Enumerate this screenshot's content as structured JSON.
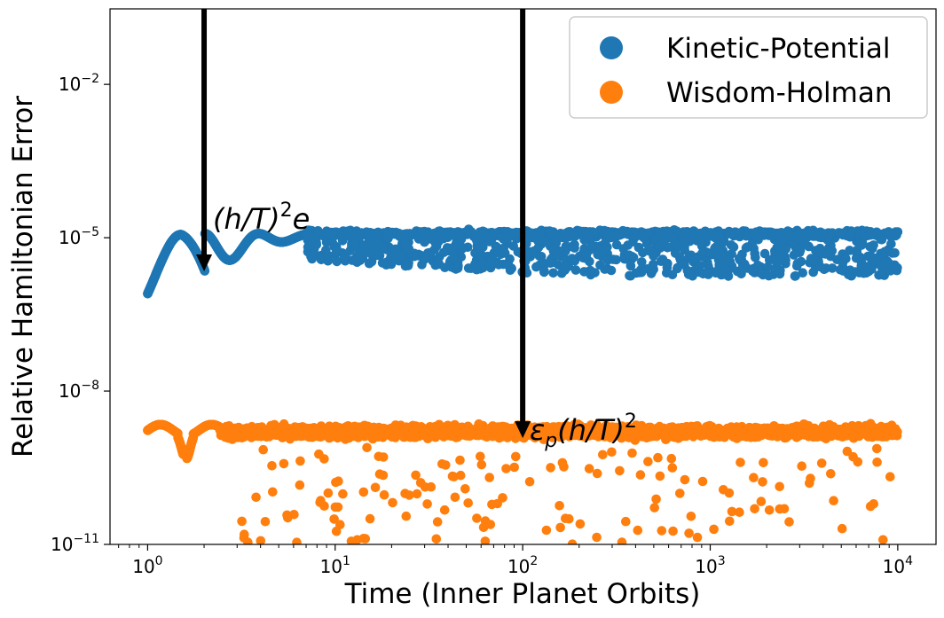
{
  "chart_data": {
    "type": "scatter",
    "title": "",
    "xlabel": "Time (Inner Planet Orbits)",
    "ylabel": "Relative Hamiltonian Error",
    "xscale": "log",
    "yscale": "log",
    "xlim": [
      0.63,
      16000
    ],
    "ylim": [
      1e-11,
      0.3
    ],
    "x_ticks": [
      {
        "value": 1,
        "base": "10",
        "exp": "0"
      },
      {
        "value": 10,
        "base": "10",
        "exp": "1"
      },
      {
        "value": 100,
        "base": "10",
        "exp": "2"
      },
      {
        "value": 1000,
        "base": "10",
        "exp": "3"
      },
      {
        "value": 10000,
        "base": "10",
        "exp": "4"
      }
    ],
    "y_ticks": [
      {
        "value": 1e-11,
        "base": "10",
        "exp": "−11"
      },
      {
        "value": 1e-08,
        "base": "10",
        "exp": "−8"
      },
      {
        "value": 1e-05,
        "base": "10",
        "exp": "−5"
      },
      {
        "value": 0.01,
        "base": "10",
        "exp": "−2"
      }
    ],
    "legend_position": "top-right",
    "series": [
      {
        "name": "Kinetic-Potential",
        "color": "#1f77b4",
        "trend": "rises from ~8e-7 at t=1 with decaying oscillations (peaks ~1.2e-5, troughs ~2e-6 near t=2) then scattered between ~2e-6 and ~1.3e-5 up to t=1e4",
        "points": [
          [
            1.0,
            8e-07
          ],
          [
            1.2,
            3e-06
          ],
          [
            1.5,
            1.1e-05
          ],
          [
            2.0,
            2.2e-06
          ],
          [
            2.5,
            1e-05
          ],
          [
            3.1,
            3.5e-06
          ],
          [
            4.0,
            1.1e-05
          ],
          [
            6.0,
            1.2e-05
          ],
          [
            10,
            6e-06
          ],
          [
            20,
            5e-06
          ],
          [
            50,
            4e-06
          ],
          [
            100,
            5e-06
          ],
          [
            200,
            3e-06
          ],
          [
            500,
            2.5e-06
          ],
          [
            1000,
            4e-06
          ],
          [
            3000,
            3e-06
          ],
          [
            9000,
            2.8e-06
          ],
          [
            10000,
            1.3e-05
          ]
        ]
      },
      {
        "name": "Wisdom-Holman",
        "color": "#ff7f0e",
        "trend": "flat band at ~1.4e-9 to ~2e-9 with a dip near t=1.6 and sparse outliers down to ~1e-11",
        "points": [
          [
            1.0,
            1.7e-09
          ],
          [
            1.6,
            6e-10
          ],
          [
            2.2,
            1.8e-09
          ],
          [
            3.0,
            1.1e-10
          ],
          [
            6.0,
            1.5e-10
          ],
          [
            10,
            1.9e-09
          ],
          [
            30,
            7e-11
          ],
          [
            100,
            1.4e-09
          ],
          [
            300,
            4e-11
          ],
          [
            500,
            1e-11
          ],
          [
            1000,
            1.6e-09
          ],
          [
            3000,
            2e-10
          ],
          [
            7000,
            1.1e-11
          ],
          [
            10000,
            1.8e-09
          ]
        ]
      }
    ],
    "annotations": [
      {
        "text_base": "(h/T)",
        "text_sup": "2",
        "text_tail": "e",
        "arrow_x": 2.0,
        "arrow_from": "top",
        "arrow_to": 2.2e-06
      },
      {
        "text_base": "ε",
        "text_sub": "p",
        "text_mid": "(h/T)",
        "text_sup": "2",
        "arrow_x": 100,
        "arrow_from": "top",
        "arrow_to": 1.2e-09
      }
    ]
  }
}
